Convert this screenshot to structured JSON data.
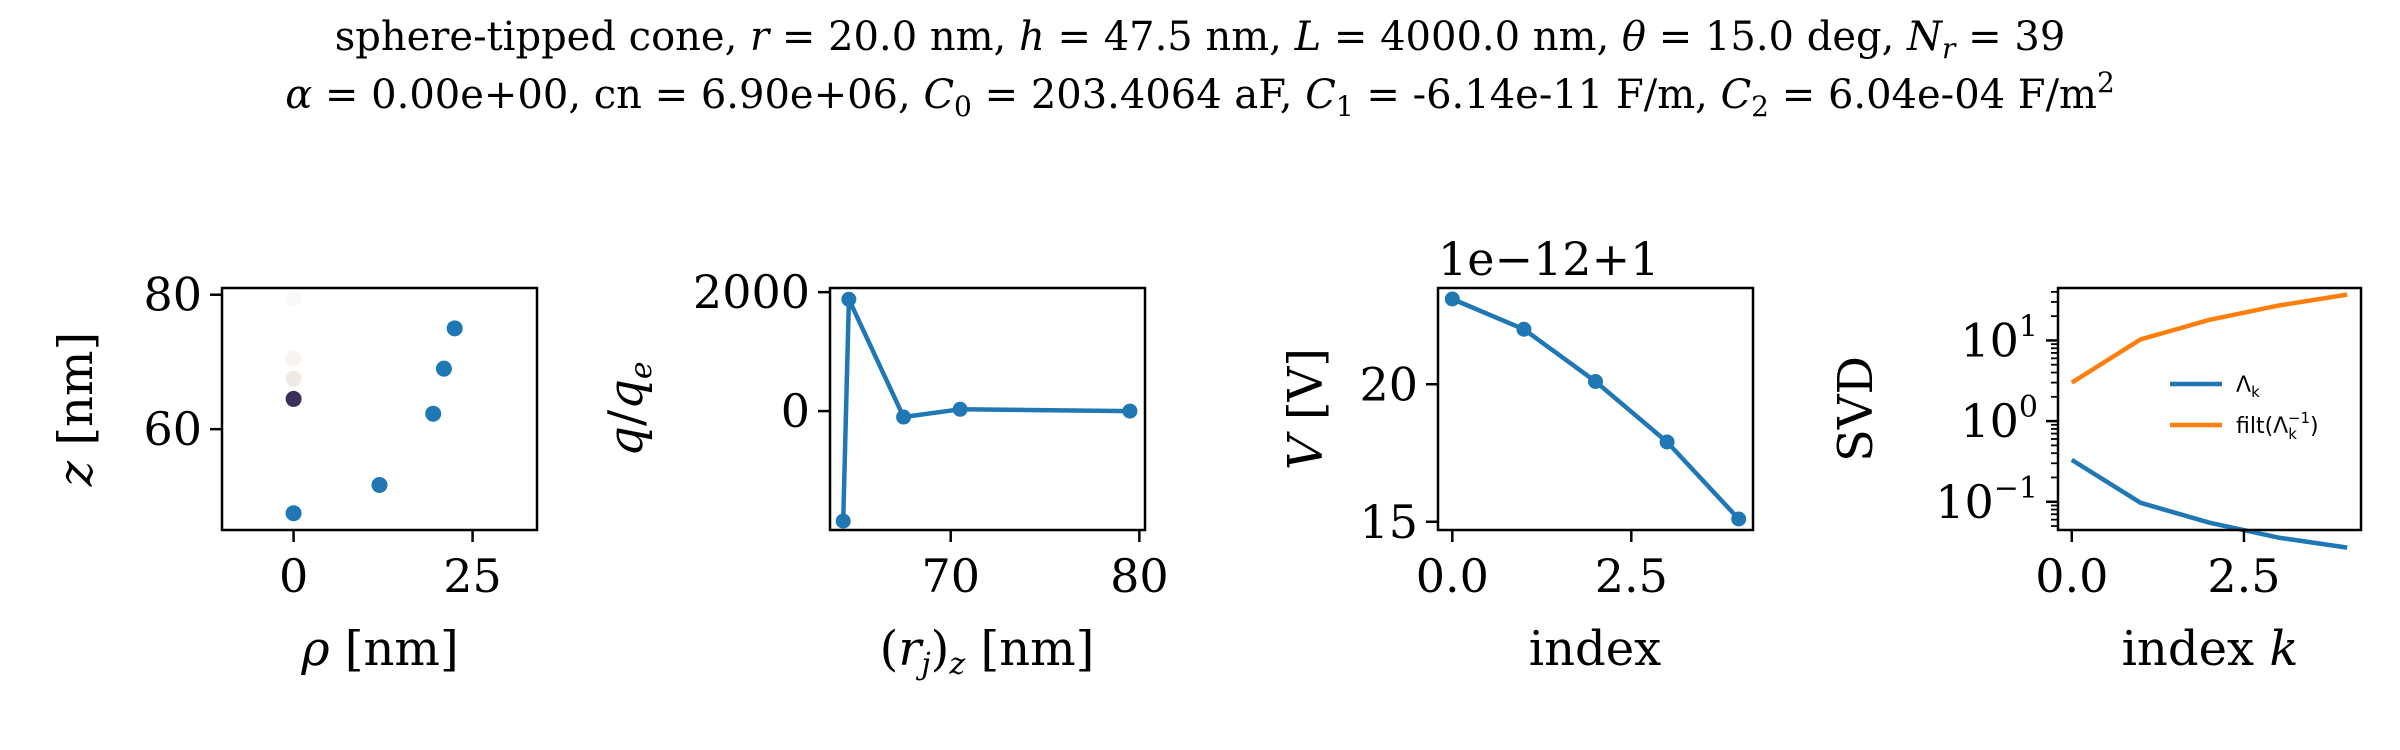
{
  "figure": {
    "title_line1": {
      "seg1": "sphere-tipped cone, ",
      "r_sym": "r",
      "r_val": " = 20.0 nm, ",
      "h_sym": "h",
      "h_val": " = 47.5 nm, ",
      "L_sym": "L",
      "L_val": " = 4000.0 nm, ",
      "theta_sym": "θ",
      "theta_val": " = 15.0 deg, ",
      "N_sym": "N",
      "N_sub": "r",
      "N_val": " = 39"
    },
    "title_line2": {
      "alpha_sym": "α",
      "alpha_val": " = 0.00e+00, cn = 6.90e+06, ",
      "C0_sym": "C",
      "C0_sub": "0",
      "C0_val": " = 203.4064 aF, ",
      "C1_sym": "C",
      "C1_sub": "1",
      "C1_val": " = -6.14e-11 F/m, ",
      "C2_sym": "C",
      "C2_sub": "2",
      "C2_val": " = 6.04e-04 F/m",
      "C2_sup": "2"
    }
  },
  "colors": {
    "blue": "#1f77b4",
    "orange": "#ff7f0e",
    "dark": "#3b2f5b"
  },
  "chart_data": [
    {
      "type": "scatter",
      "xlabel_sym": "ρ",
      "xlabel_rest": " [nm]",
      "ylabel_sym": "z",
      "ylabel_rest": " [nm]",
      "xlim": [
        -10,
        34
      ],
      "ylim": [
        45,
        81
      ],
      "xticks": [
        {
          "v": 0,
          "label": "0"
        },
        {
          "v": 25,
          "label": "25"
        }
      ],
      "yticks": [
        {
          "v": 60,
          "label": "60"
        },
        {
          "v": 80,
          "label": "80"
        }
      ],
      "points": [
        {
          "x": 0,
          "y": 47.5,
          "color": "#1f77b4",
          "alpha": 1
        },
        {
          "x": 12,
          "y": 51.7,
          "color": "#1f77b4",
          "alpha": 1
        },
        {
          "x": 19.5,
          "y": 62.3,
          "color": "#1f77b4",
          "alpha": 1
        },
        {
          "x": 21,
          "y": 69.0,
          "color": "#1f77b4",
          "alpha": 1
        },
        {
          "x": 22.5,
          "y": 75.0,
          "color": "#1f77b4",
          "alpha": 1
        },
        {
          "x": 0,
          "y": 64.5,
          "color": "#3b2f5b",
          "alpha": 1
        },
        {
          "x": 0,
          "y": 67.5,
          "color": "#e8dcd2",
          "alpha": 0.6
        },
        {
          "x": 0,
          "y": 70.5,
          "color": "#efe6df",
          "alpha": 0.45
        },
        {
          "x": 0,
          "y": 79.5,
          "color": "#f4eeea",
          "alpha": 0.35
        }
      ]
    },
    {
      "type": "line",
      "xlabel_a": "(",
      "xlabel_sym": "r",
      "xlabel_sub": "j",
      "xlabel_b": ")",
      "xlabel_sub2": "z",
      "xlabel_rest": " [nm]",
      "ylabel_sym": "q",
      "ylabel_slash": "/",
      "ylabel_sym2": "q",
      "ylabel_sub": "e",
      "xlim": [
        63.6,
        80.3
      ],
      "ylim": [
        -2000,
        2070
      ],
      "xticks": [
        {
          "v": 70,
          "label": "70"
        },
        {
          "v": 80,
          "label": "80"
        }
      ],
      "yticks": [
        {
          "v": 0,
          "label": "0"
        },
        {
          "v": 2000,
          "label": "2000"
        }
      ],
      "x": [
        64.3,
        64.6,
        67.5,
        70.5,
        79.5
      ],
      "y": [
        -1850,
        1880,
        -100,
        30,
        0
      ]
    },
    {
      "type": "line",
      "xlabel": "index",
      "ylabel_sym": "V",
      "ylabel_rest": " [V]",
      "offset_text": "1e−12+1",
      "xlim": [
        -0.2,
        4.2
      ],
      "ylim": [
        14.7,
        23.5
      ],
      "xticks": [
        {
          "v": 0,
          "label": "0.0"
        },
        {
          "v": 2.5,
          "label": "2.5"
        }
      ],
      "yticks": [
        {
          "v": 15,
          "label": "15"
        },
        {
          "v": 20,
          "label": "20"
        }
      ],
      "x": [
        0,
        1,
        2,
        3,
        4
      ],
      "y": [
        23.1,
        22.0,
        20.1,
        17.9,
        15.1
      ]
    },
    {
      "type": "line",
      "scale": "log",
      "xlabel": "index ",
      "xlabel_sym": "k",
      "ylabel": "SVD",
      "xlim": [
        -0.2,
        4.2
      ],
      "ylim_log10": [
        -1.35,
        1.65
      ],
      "xticks": [
        {
          "v": 0,
          "label": "0.0"
        },
        {
          "v": 2.5,
          "label": "2.5"
        }
      ],
      "yticks": [
        {
          "e": -1,
          "base": "10",
          "exp": "−1"
        },
        {
          "e": 0,
          "base": "10",
          "exp": "0"
        },
        {
          "e": 1,
          "base": "10",
          "exp": "1"
        }
      ],
      "legend_position": "center-right",
      "series": [
        {
          "name_main": "Λ",
          "name_sub": "k",
          "color": "#1f77b4",
          "x": [
            0,
            1,
            2,
            3,
            4
          ],
          "y": [
            0.33,
            0.097,
            0.055,
            0.036,
            0.027
          ]
        },
        {
          "name_pre": "filt(Λ",
          "name_sub": "k",
          "name_sup": "−1",
          "name_post": ")",
          "color": "#ff7f0e",
          "x": [
            0,
            1,
            2,
            3,
            4
          ],
          "y": [
            3.0,
            10.3,
            18.0,
            27.0,
            37.0
          ]
        }
      ]
    }
  ]
}
